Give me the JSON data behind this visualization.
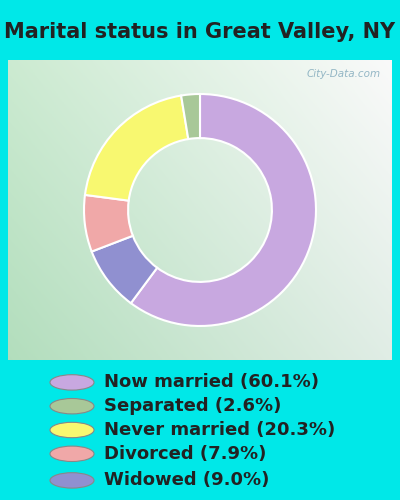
{
  "title": "Marital status in Great Valley, NY",
  "slices": [
    60.1,
    9.0,
    7.9,
    20.3,
    2.6
  ],
  "slice_order_labels": [
    "Now married",
    "Widowed",
    "Divorced",
    "Never married",
    "Separated"
  ],
  "colors": [
    "#c8a8e0",
    "#9090d0",
    "#f0a8a8",
    "#f8f870",
    "#a8c898"
  ],
  "legend_labels": [
    "Now married (60.1%)",
    "Separated (2.6%)",
    "Never married (20.3%)",
    "Divorced (7.9%)",
    "Widowed (9.0%)"
  ],
  "legend_colors": [
    "#c8a8e0",
    "#a8c898",
    "#f8f870",
    "#f0a8a8",
    "#9090d0"
  ],
  "bg_cyan": "#00e8e8",
  "title_fontsize": 15,
  "title_color": "#222222",
  "legend_fontsize": 13,
  "watermark": "City-Data.com",
  "donut_width": 0.38,
  "startangle": 90
}
